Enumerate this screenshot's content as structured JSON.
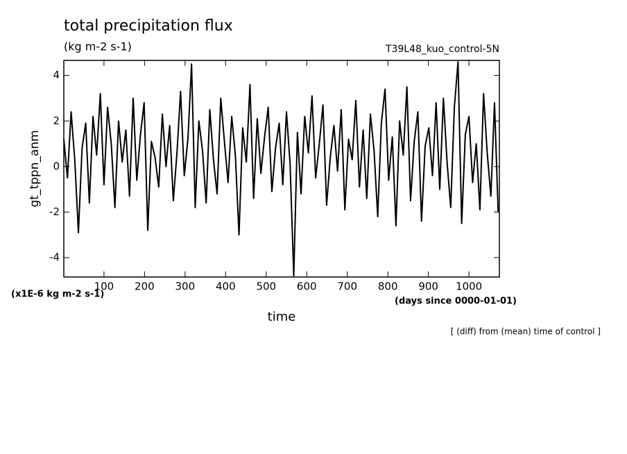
{
  "chart_data": {
    "type": "line",
    "title": "total precipitation flux",
    "subtitle": "(kg m-2 s-1)",
    "run_label": "T39L48_kuo_control-5N",
    "ylabel": "gt_tppn_anm",
    "yunits": "(x1E-6 kg m-2 s-1)",
    "xlabel": "time",
    "xunits": "(days since 0000-01-01)",
    "note": "[ (diff) from (mean) time of control ]",
    "xlim": [
      1,
      1075
    ],
    "ylim": [
      -4.85,
      4.66
    ],
    "xticks": [
      100,
      200,
      300,
      400,
      500,
      600,
      700,
      800,
      900,
      1000
    ],
    "yticks": [
      -4,
      -2,
      0,
      2,
      4
    ],
    "series": [
      {
        "color": "#000000",
        "x": [
          1,
          10,
          19,
          28,
          37,
          46,
          55,
          64,
          73,
          82,
          91,
          100,
          109,
          118,
          127,
          136,
          145,
          154,
          163,
          172,
          181,
          190,
          199,
          208,
          217,
          226,
          235,
          244,
          253,
          262,
          271,
          280,
          289,
          298,
          307,
          316,
          325,
          334,
          343,
          352,
          361,
          370,
          379,
          388,
          397,
          406,
          415,
          424,
          433,
          442,
          451,
          460,
          469,
          478,
          487,
          496,
          505,
          514,
          523,
          532,
          541,
          550,
          559,
          568,
          577,
          586,
          595,
          604,
          613,
          622,
          631,
          640,
          649,
          658,
          667,
          676,
          685,
          694,
          703,
          712,
          721,
          730,
          739,
          748,
          757,
          766,
          775,
          784,
          793,
          802,
          811,
          820,
          829,
          838,
          847,
          856,
          865,
          874,
          883,
          892,
          901,
          910,
          919,
          928,
          937,
          946,
          955,
          964,
          973,
          982,
          991,
          1000,
          1009,
          1018,
          1027,
          1036,
          1045,
          1054,
          1063,
          1072
        ],
        "values": [
          1.2,
          -0.5,
          2.4,
          0.3,
          -2.9,
          0.8,
          1.9,
          -1.6,
          2.2,
          0.5,
          3.2,
          -0.8,
          2.6,
          1.0,
          -1.8,
          2.0,
          0.2,
          1.6,
          -1.3,
          3.0,
          -0.6,
          1.4,
          2.8,
          -2.8,
          1.1,
          0.4,
          -0.9,
          2.3,
          0.0,
          1.8,
          -1.5,
          0.6,
          3.3,
          -0.4,
          1.2,
          4.5,
          -1.8,
          2.0,
          0.7,
          -1.6,
          2.5,
          0.3,
          -1.2,
          3.0,
          1.1,
          -0.7,
          2.2,
          0.5,
          -3.0,
          1.7,
          0.2,
          3.6,
          -1.4,
          2.1,
          -0.3,
          1.3,
          2.6,
          -1.1,
          0.8,
          1.9,
          -0.8,
          2.4,
          0.1,
          -4.8,
          1.5,
          -1.2,
          2.2,
          0.6,
          3.1,
          -0.5,
          1.0,
          2.7,
          -1.7,
          0.4,
          1.8,
          -0.2,
          2.5,
          -1.9,
          1.2,
          0.3,
          2.9,
          -0.9,
          1.6,
          -1.4,
          2.3,
          0.7,
          -2.2,
          1.9,
          3.4,
          -0.6,
          1.3,
          -2.6,
          2.0,
          0.5,
          3.5,
          -1.5,
          1.1,
          2.4,
          -2.4,
          0.9,
          1.7,
          -0.4,
          2.8,
          -1.0,
          3.0,
          0.2,
          -1.8,
          2.6,
          4.6,
          -2.5,
          1.4,
          2.2,
          -0.7,
          1.0,
          -1.9,
          3.2,
          0.6,
          -1.3,
          2.8,
          -2.0
        ]
      }
    ]
  }
}
